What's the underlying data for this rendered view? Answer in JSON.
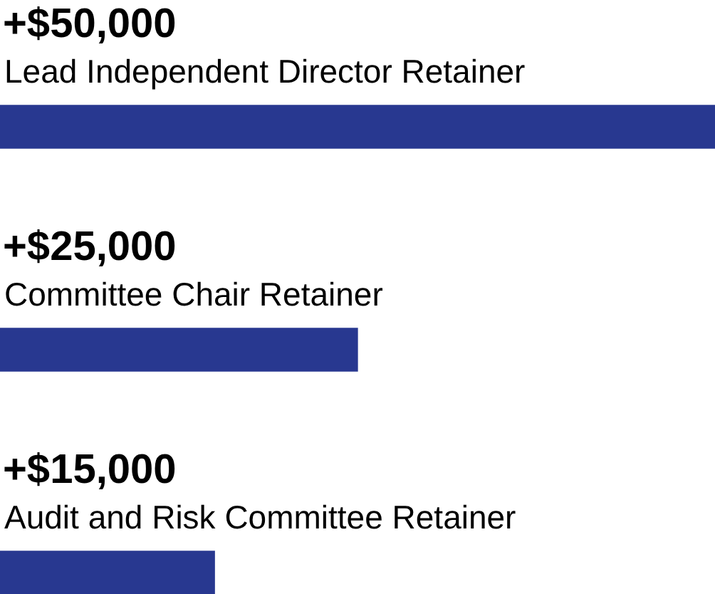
{
  "chart_data": {
    "type": "bar",
    "orientation": "horizontal",
    "categories": [
      "Lead Independent Director Retainer",
      "Committee Chair Retainer",
      "Audit and Risk Committee Retainer"
    ],
    "values": [
      50000,
      25000,
      15000
    ],
    "value_labels": [
      "+$50,000",
      "+$25,000",
      "+$15,000"
    ],
    "color": "#283890",
    "xlim": [
      0,
      50000
    ],
    "tick_labels": "y"
  }
}
